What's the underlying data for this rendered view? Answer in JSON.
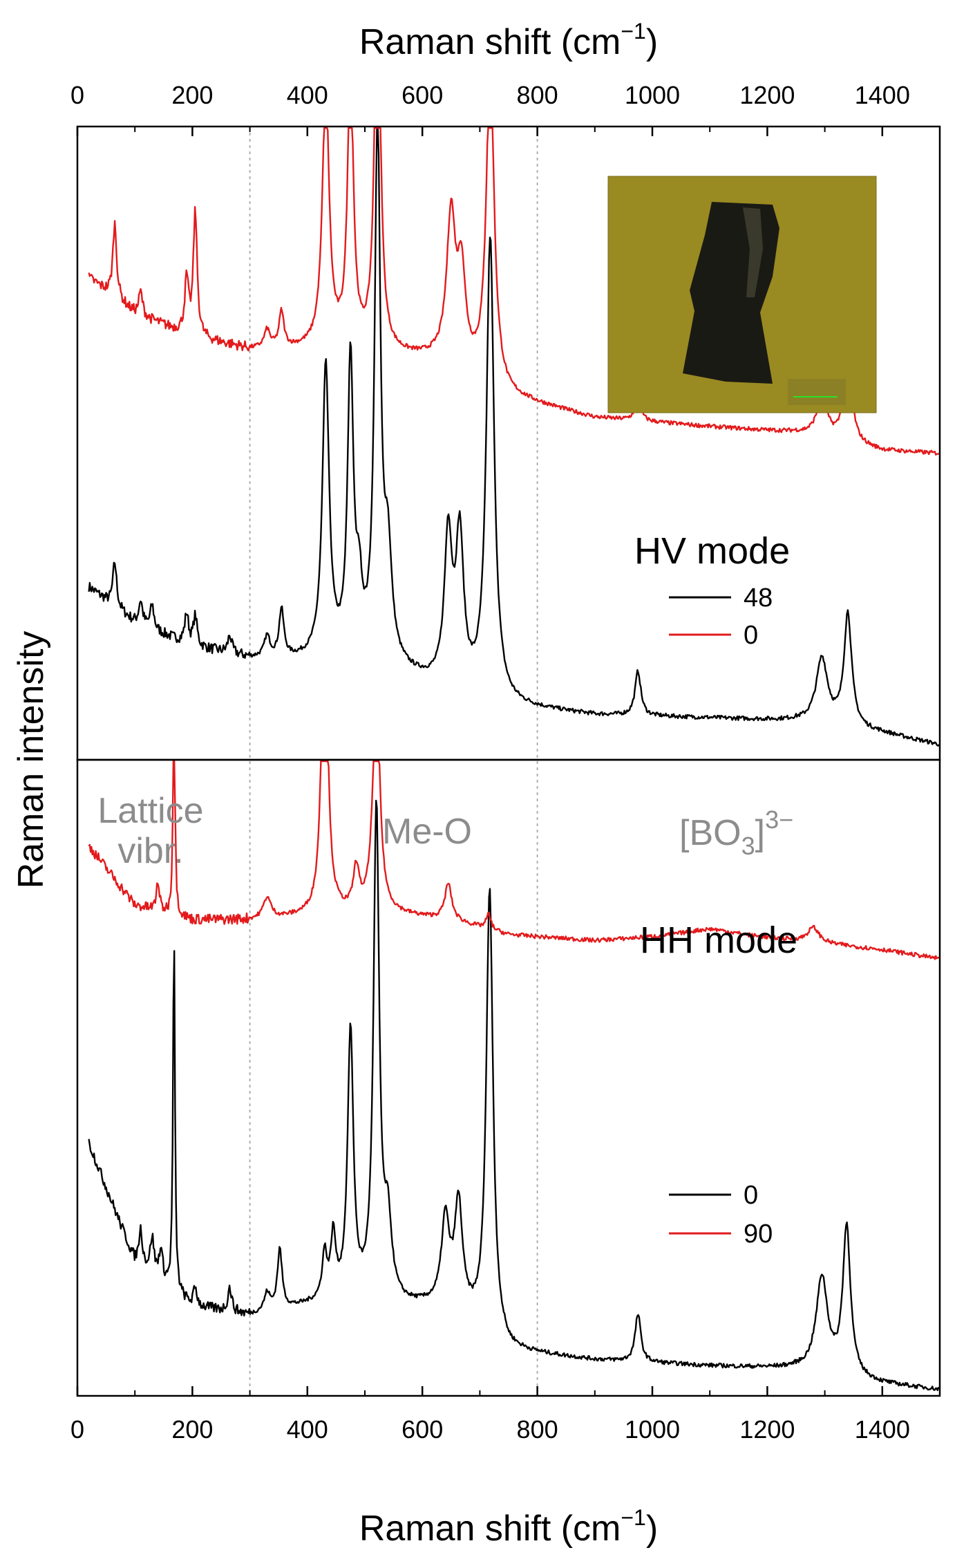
{
  "chart_data": {
    "type": "line",
    "x_axis": {
      "title_main": "Raman shift (cm",
      "title_sup": "−1",
      "title_end": ")",
      "range": [
        0,
        1500
      ],
      "ticks": [
        0,
        200,
        400,
        600,
        800,
        1000,
        1200,
        1400
      ]
    },
    "y_axis": {
      "title": "Raman intensity",
      "tick_labels": false
    },
    "reference_lines_x": [
      300,
      800
    ],
    "colors": {
      "black": "#000000",
      "red": "#e31a1c",
      "region": "#8c8c8c",
      "reference": "#b0b0b0"
    },
    "panels": [
      {
        "id": "HV",
        "mode_label": "HV mode",
        "legend": [
          {
            "label": "48",
            "color": "#000000"
          },
          {
            "label": "0",
            "color": "#e31a1c"
          }
        ],
        "inset": {
          "kind": "optical micrograph of crystal"
        },
        "series": [
          {
            "name": "48",
            "color": "#000000",
            "baseline": [
              [
                20,
                0.58
              ],
              [
                100,
                0.46
              ],
              [
                200,
                0.38
              ],
              [
                300,
                0.34
              ],
              [
                450,
                0.33
              ],
              [
                550,
                0.3
              ],
              [
                650,
                0.23
              ],
              [
                750,
                0.18
              ],
              [
                900,
                0.15
              ],
              [
                1100,
                0.14
              ],
              [
                1250,
                0.13
              ],
              [
                1400,
                0.09
              ],
              [
                1500,
                0.05
              ]
            ],
            "peaks": [
              [
                65,
                0.15,
                4
              ],
              [
                110,
                0.08,
                4
              ],
              [
                130,
                0.08,
                4
              ],
              [
                190,
                0.1,
                4
              ],
              [
                205,
                0.1,
                4
              ],
              [
                265,
                0.06,
                4
              ],
              [
                330,
                0.07,
                6
              ],
              [
                355,
                0.16,
                5
              ],
              [
                432,
                0.98,
                7
              ],
              [
                475,
                1.0,
                6
              ],
              [
                490,
                0.2,
                6
              ],
              [
                522,
                1.8,
                6
              ],
              [
                540,
                0.35,
                8
              ],
              [
                645,
                0.5,
                8
              ],
              [
                665,
                0.5,
                8
              ],
              [
                718,
                1.55,
                8
              ],
              [
                975,
                0.15,
                6
              ],
              [
                1295,
                0.22,
                12
              ],
              [
                1340,
                0.38,
                8
              ]
            ]
          },
          {
            "name": "0",
            "color": "#e31a1c",
            "baseline": [
              [
                20,
                1.62
              ],
              [
                100,
                1.5
              ],
              [
                200,
                1.42
              ],
              [
                300,
                1.38
              ],
              [
                450,
                1.38
              ],
              [
                550,
                1.36
              ],
              [
                650,
                1.34
              ],
              [
                750,
                1.22
              ],
              [
                900,
                1.15
              ],
              [
                1100,
                1.12
              ],
              [
                1250,
                1.1
              ],
              [
                1400,
                1.04
              ],
              [
                1500,
                1.03
              ]
            ],
            "peaks": [
              [
                65,
                0.25,
                4
              ],
              [
                110,
                0.08,
                4
              ],
              [
                190,
                0.18,
                4
              ],
              [
                205,
                0.42,
                4
              ],
              [
                330,
                0.06,
                6
              ],
              [
                355,
                0.12,
                5
              ],
              [
                432,
                0.88,
                7
              ],
              [
                475,
                0.95,
                6
              ],
              [
                522,
                1.35,
                6
              ],
              [
                650,
                0.48,
                9
              ],
              [
                668,
                0.3,
                8
              ],
              [
                718,
                1.1,
                8
              ],
              [
                975,
                0.08,
                6
              ],
              [
                1295,
                0.12,
                12
              ],
              [
                1340,
                0.3,
                8
              ]
            ]
          }
        ]
      },
      {
        "id": "HH",
        "mode_label": "HH mode",
        "region_labels": [
          {
            "lines": [
              "Lattice",
              "vibr."
            ]
          },
          {
            "text": "Me-O"
          },
          {
            "main": "[BO",
            "sub": "3",
            "close": "]",
            "sup": "3−"
          }
        ],
        "legend": [
          {
            "label": "0",
            "color": "#000000"
          },
          {
            "label": "90",
            "color": "#e31a1c"
          }
        ],
        "series": [
          {
            "name": "0",
            "color": "#000000",
            "baseline": [
              [
                20,
                0.85
              ],
              [
                100,
                0.45
              ],
              [
                200,
                0.3
              ],
              [
                300,
                0.27
              ],
              [
                450,
                0.32
              ],
              [
                550,
                0.3
              ],
              [
                650,
                0.3
              ],
              [
                750,
                0.15
              ],
              [
                900,
                0.12
              ],
              [
                1100,
                0.1
              ],
              [
                1250,
                0.09
              ],
              [
                1400,
                0.04
              ],
              [
                1500,
                0.02
              ]
            ],
            "peaks": [
              [
                110,
                0.12,
                4
              ],
              [
                130,
                0.12,
                4
              ],
              [
                145,
                0.1,
                4
              ],
              [
                168,
                1.2,
                2
              ],
              [
                205,
                0.06,
                4
              ],
              [
                265,
                0.08,
                4
              ],
              [
                330,
                0.06,
                6
              ],
              [
                352,
                0.2,
                5
              ],
              [
                430,
                0.15,
                5
              ],
              [
                445,
                0.2,
                5
              ],
              [
                475,
                0.9,
                6
              ],
              [
                520,
                1.65,
                6
              ],
              [
                540,
                0.25,
                8
              ],
              [
                640,
                0.28,
                8
              ],
              [
                663,
                0.35,
                8
              ],
              [
                717,
                1.5,
                7
              ],
              [
                975,
                0.16,
                6
              ],
              [
                1295,
                0.32,
                12
              ],
              [
                1338,
                0.5,
                8
              ]
            ]
          },
          {
            "name": "90",
            "color": "#e31a1c",
            "baseline": [
              [
                20,
                1.85
              ],
              [
                100,
                1.65
              ],
              [
                200,
                1.6
              ],
              [
                300,
                1.6
              ],
              [
                450,
                1.62
              ],
              [
                550,
                1.62
              ],
              [
                650,
                1.6
              ],
              [
                750,
                1.55
              ],
              [
                900,
                1.53
              ],
              [
                1100,
                1.55
              ],
              [
                1250,
                1.53
              ],
              [
                1400,
                1.5
              ],
              [
                1500,
                1.47
              ]
            ],
            "peaks": [
              [
                140,
                0.1,
                3
              ],
              [
                168,
                0.75,
                2
              ],
              [
                330,
                0.07,
                8
              ],
              [
                430,
                1.15,
                6
              ],
              [
                485,
                0.14,
                6
              ],
              [
                520,
                0.8,
                7
              ],
              [
                645,
                0.12,
                7
              ],
              [
                715,
                0.05,
                5
              ],
              [
                1100,
                0.02,
                60
              ],
              [
                1280,
                0.05,
                12
              ]
            ]
          }
        ]
      }
    ]
  }
}
